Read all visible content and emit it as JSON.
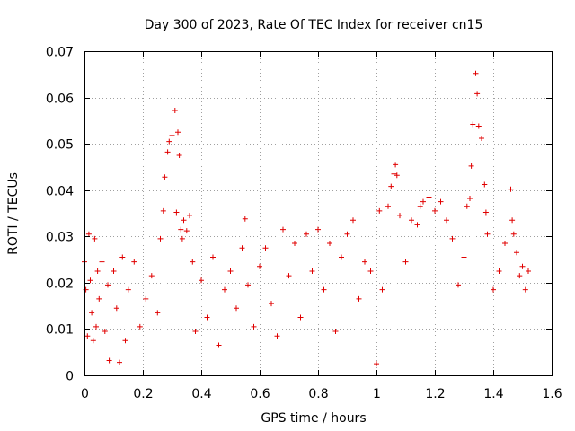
{
  "chart_data": {
    "type": "scatter",
    "title": "Day 300 of 2023, Rate Of TEC Index for receiver cn15",
    "xlabel": "GPS time / hours",
    "ylabel": "ROTI / TECUs",
    "xlim": [
      0,
      1.6
    ],
    "ylim": [
      0,
      0.07
    ],
    "x_ticks": [
      0,
      0.2,
      0.4,
      0.6,
      0.8,
      1.0,
      1.2,
      1.4,
      1.6
    ],
    "x_tick_labels": [
      "0",
      "0.2",
      "0.4",
      "0.6",
      "0.8",
      "1",
      "1.2",
      "1.4",
      "1.6"
    ],
    "y_ticks": [
      0,
      0.01,
      0.02,
      0.03,
      0.04,
      0.05,
      0.06,
      0.07
    ],
    "y_tick_labels": [
      "0",
      "0.01",
      "0.02",
      "0.03",
      "0.04",
      "0.05",
      "0.06",
      "0.07"
    ],
    "grid": true,
    "marker": "+",
    "series": [
      {
        "name": "cn15",
        "color": "#e00000",
        "x_range": [
          0,
          1.52
        ],
        "points": [
          [
            0.0,
            0.0245
          ],
          [
            0.005,
            0.0185
          ],
          [
            0.01,
            0.0085
          ],
          [
            0.015,
            0.0305
          ],
          [
            0.02,
            0.0205
          ],
          [
            0.025,
            0.0135
          ],
          [
            0.03,
            0.0075
          ],
          [
            0.035,
            0.0295
          ],
          [
            0.04,
            0.0105
          ],
          [
            0.045,
            0.0225
          ],
          [
            0.05,
            0.0165
          ],
          [
            0.06,
            0.0245
          ],
          [
            0.07,
            0.0095
          ],
          [
            0.08,
            0.0195
          ],
          [
            0.085,
            0.0032
          ],
          [
            0.1,
            0.0225
          ],
          [
            0.11,
            0.0145
          ],
          [
            0.12,
            0.0028
          ],
          [
            0.13,
            0.0255
          ],
          [
            0.14,
            0.0075
          ],
          [
            0.15,
            0.0185
          ],
          [
            0.17,
            0.0245
          ],
          [
            0.19,
            0.0105
          ],
          [
            0.21,
            0.0165
          ],
          [
            0.23,
            0.0215
          ],
          [
            0.25,
            0.0135
          ],
          [
            0.26,
            0.0295
          ],
          [
            0.27,
            0.0355
          ],
          [
            0.275,
            0.0428
          ],
          [
            0.285,
            0.0482
          ],
          [
            0.29,
            0.0505
          ],
          [
            0.3,
            0.0518
          ],
          [
            0.31,
            0.0572
          ],
          [
            0.315,
            0.0352
          ],
          [
            0.32,
            0.0525
          ],
          [
            0.325,
            0.0475
          ],
          [
            0.33,
            0.0315
          ],
          [
            0.335,
            0.0295
          ],
          [
            0.34,
            0.0335
          ],
          [
            0.35,
            0.0312
          ],
          [
            0.36,
            0.0345
          ],
          [
            0.37,
            0.0245
          ],
          [
            0.38,
            0.0095
          ],
          [
            0.4,
            0.0205
          ],
          [
            0.42,
            0.0125
          ],
          [
            0.44,
            0.0255
          ],
          [
            0.46,
            0.0065
          ],
          [
            0.48,
            0.0185
          ],
          [
            0.5,
            0.0225
          ],
          [
            0.52,
            0.0145
          ],
          [
            0.54,
            0.0275
          ],
          [
            0.55,
            0.0338
          ],
          [
            0.56,
            0.0195
          ],
          [
            0.58,
            0.0105
          ],
          [
            0.6,
            0.0235
          ],
          [
            0.62,
            0.0275
          ],
          [
            0.64,
            0.0155
          ],
          [
            0.66,
            0.0085
          ],
          [
            0.68,
            0.0315
          ],
          [
            0.7,
            0.0215
          ],
          [
            0.72,
            0.0285
          ],
          [
            0.74,
            0.0125
          ],
          [
            0.76,
            0.0305
          ],
          [
            0.78,
            0.0225
          ],
          [
            0.8,
            0.0315
          ],
          [
            0.82,
            0.0185
          ],
          [
            0.84,
            0.0285
          ],
          [
            0.86,
            0.0095
          ],
          [
            0.88,
            0.0255
          ],
          [
            0.9,
            0.0305
          ],
          [
            0.92,
            0.0335
          ],
          [
            0.94,
            0.0165
          ],
          [
            0.96,
            0.0245
          ],
          [
            0.98,
            0.0225
          ],
          [
            1.0,
            0.0025
          ],
          [
            1.01,
            0.0355
          ],
          [
            1.02,
            0.0185
          ],
          [
            1.04,
            0.0365
          ],
          [
            1.05,
            0.0408
          ],
          [
            1.06,
            0.0435
          ],
          [
            1.065,
            0.0455
          ],
          [
            1.07,
            0.0432
          ],
          [
            1.08,
            0.0345
          ],
          [
            1.1,
            0.0245
          ],
          [
            1.12,
            0.0335
          ],
          [
            1.14,
            0.0325
          ],
          [
            1.15,
            0.0365
          ],
          [
            1.16,
            0.0375
          ],
          [
            1.18,
            0.0385
          ],
          [
            1.2,
            0.0355
          ],
          [
            1.22,
            0.0375
          ],
          [
            1.24,
            0.0335
          ],
          [
            1.26,
            0.0295
          ],
          [
            1.28,
            0.0195
          ],
          [
            1.3,
            0.0255
          ],
          [
            1.31,
            0.0365
          ],
          [
            1.32,
            0.0382
          ],
          [
            1.325,
            0.0452
          ],
          [
            1.33,
            0.0542
          ],
          [
            1.34,
            0.0652
          ],
          [
            1.345,
            0.0608
          ],
          [
            1.35,
            0.0538
          ],
          [
            1.36,
            0.0512
          ],
          [
            1.37,
            0.0412
          ],
          [
            1.375,
            0.0352
          ],
          [
            1.38,
            0.0305
          ],
          [
            1.4,
            0.0185
          ],
          [
            1.42,
            0.0225
          ],
          [
            1.44,
            0.0285
          ],
          [
            1.46,
            0.0402
          ],
          [
            1.465,
            0.0335
          ],
          [
            1.47,
            0.0305
          ],
          [
            1.48,
            0.0265
          ],
          [
            1.49,
            0.0215
          ],
          [
            1.5,
            0.0235
          ],
          [
            1.51,
            0.0185
          ],
          [
            1.52,
            0.0225
          ]
        ]
      }
    ]
  }
}
